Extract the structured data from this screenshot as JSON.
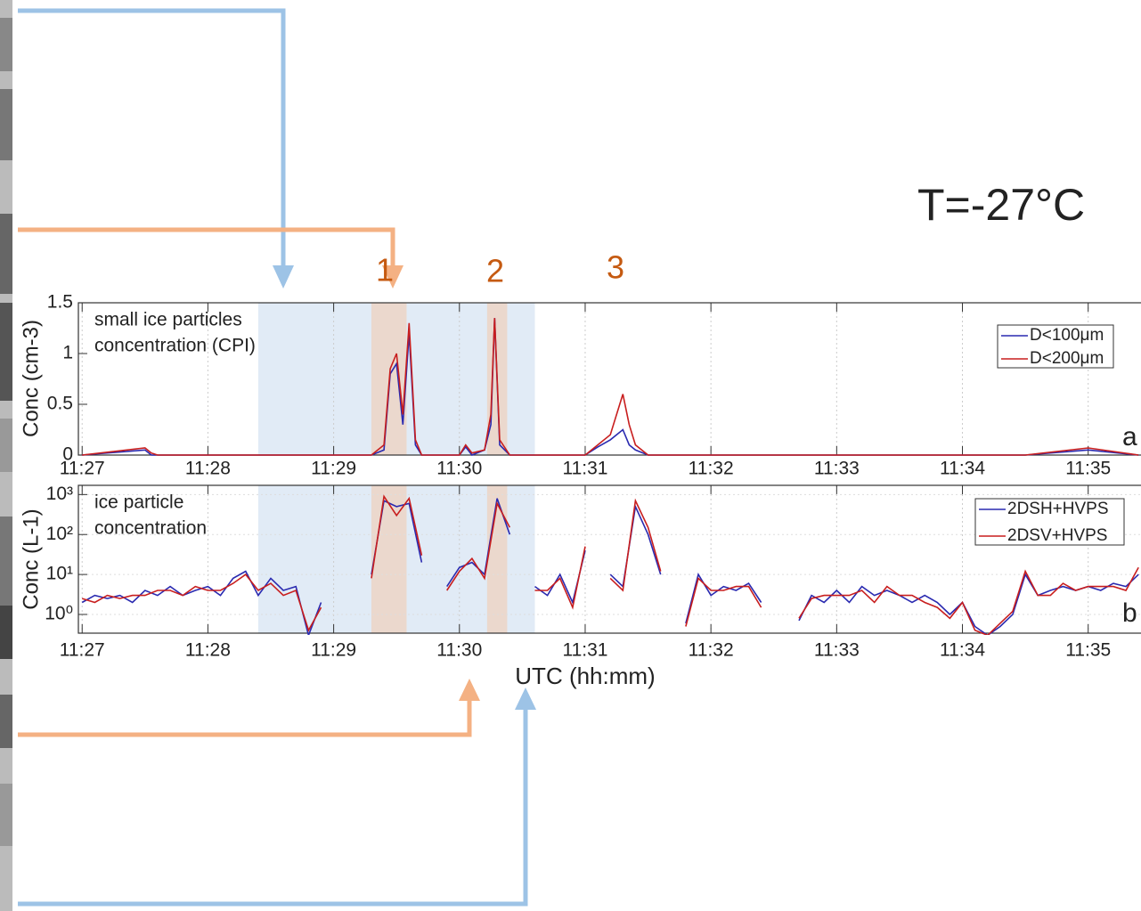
{
  "annotations": {
    "temperature": "T=-27°C",
    "events": [
      "1",
      "2",
      "3"
    ]
  },
  "chart_data": [
    {
      "type": "line",
      "panel_label": "a",
      "y_label": "Conc (cm-3)",
      "note_lines": [
        "small ice particles",
        "concentration (CPI)"
      ],
      "x": [
        687.0,
        687.5,
        687.55,
        687.6,
        688.0,
        688.5,
        689.0,
        689.3,
        689.4,
        689.45,
        689.5,
        689.55,
        689.6,
        689.65,
        689.7,
        690.0,
        690.05,
        690.1,
        690.2,
        690.25,
        690.28,
        690.32,
        690.4,
        691.0,
        691.1,
        691.2,
        691.3,
        691.35,
        691.4,
        691.5,
        691.6,
        692.0,
        692.5,
        693.0,
        693.5,
        694.0,
        694.5,
        695.0,
        695.4
      ],
      "series": [
        {
          "name": "D<100μm",
          "color": "#2a2ab0",
          "values": [
            0,
            0.05,
            0,
            0,
            0,
            0,
            0,
            0,
            0.05,
            0.8,
            0.9,
            0.3,
            1.2,
            0.1,
            0,
            0,
            0.08,
            0,
            0.05,
            0.3,
            1.35,
            0.1,
            0,
            0,
            0.08,
            0.15,
            0.25,
            0.1,
            0.05,
            0,
            0,
            0,
            0,
            0,
            0,
            0,
            0,
            0.05,
            0
          ]
        },
        {
          "name": "D<200μm",
          "color": "#c81e1e",
          "values": [
            0,
            0.07,
            0.02,
            0,
            0,
            0,
            0,
            0,
            0.1,
            0.85,
            1.0,
            0.4,
            1.3,
            0.15,
            0,
            0,
            0.1,
            0.02,
            0.05,
            0.4,
            1.35,
            0.15,
            0,
            0,
            0.1,
            0.2,
            0.6,
            0.3,
            0.1,
            0,
            0,
            0,
            0,
            0,
            0,
            0,
            0,
            0.07,
            0
          ]
        }
      ],
      "xlim": [
        686.97,
        695.42
      ],
      "ylim": [
        0,
        1.5
      ],
      "xticks": [
        {
          "value": 687,
          "label": "11:27"
        },
        {
          "value": 688,
          "label": "11:28"
        },
        {
          "value": 689,
          "label": "11:29"
        },
        {
          "value": 690,
          "label": "11:30"
        },
        {
          "value": 691,
          "label": "11:31"
        },
        {
          "value": 692,
          "label": "11:32"
        },
        {
          "value": 693,
          "label": "11:33"
        },
        {
          "value": 694,
          "label": "11:34"
        },
        {
          "value": 695,
          "label": "11:35"
        }
      ],
      "yticks": [
        0,
        0.5,
        1,
        1.5
      ],
      "grid": true,
      "legend": "upper right",
      "shaded_regions": [
        {
          "start": 688.4,
          "end": 690.6,
          "color": "#dce8f4"
        },
        {
          "start": 689.3,
          "end": 689.58,
          "color": "#ecd5c6"
        },
        {
          "start": 690.22,
          "end": 690.38,
          "color": "#ecd5c6"
        }
      ]
    },
    {
      "type": "line",
      "panel_label": "b",
      "y_label": "Conc  (L-1)",
      "x_label": "UTC (hh:mm)",
      "note_lines": [
        "ice particle",
        "concentration"
      ],
      "x": [
        687.0,
        687.1,
        687.2,
        687.3,
        687.4,
        687.5,
        687.6,
        687.7,
        687.8,
        687.9,
        688.0,
        688.1,
        688.2,
        688.3,
        688.4,
        688.5,
        688.6,
        688.7,
        688.8,
        688.9,
        689.0,
        689.1,
        689.2,
        689.3,
        689.4,
        689.5,
        689.6,
        689.7,
        689.8,
        689.9,
        690.0,
        690.1,
        690.2,
        690.3,
        690.4,
        690.5,
        690.6,
        690.7,
        690.8,
        690.9,
        691.0,
        691.1,
        691.2,
        691.3,
        691.4,
        691.5,
        691.6,
        691.7,
        691.8,
        691.9,
        692.0,
        692.1,
        692.2,
        692.3,
        692.4,
        692.5,
        692.6,
        692.7,
        692.8,
        692.9,
        693.0,
        693.1,
        693.2,
        693.3,
        693.4,
        693.5,
        693.6,
        693.7,
        693.8,
        693.9,
        694.0,
        694.1,
        694.2,
        694.3,
        694.4,
        694.5,
        694.6,
        694.7,
        694.8,
        694.9,
        695.0,
        695.1,
        695.2,
        695.3,
        695.4
      ],
      "series": [
        {
          "name": "2DSH+HVPS",
          "color": "#2a2ab0",
          "values": [
            2,
            3,
            2.5,
            3,
            2,
            4,
            3,
            5,
            3,
            4,
            5,
            3,
            8,
            12,
            3,
            8,
            4,
            5,
            0.3,
            2,
            null,
            3,
            null,
            10,
            700,
            500,
            600,
            20,
            null,
            5,
            15,
            20,
            10,
            800,
            100,
            null,
            5,
            3,
            10,
            2,
            40,
            null,
            10,
            5,
            500,
            100,
            10,
            null,
            0.6,
            10,
            3,
            5,
            4,
            6,
            2,
            null,
            null,
            0.7,
            3,
            2,
            4,
            2,
            5,
            3,
            4,
            3,
            2,
            3,
            2,
            1,
            2,
            0.5,
            0.3,
            0.5,
            1,
            10,
            3,
            4,
            5,
            4,
            5,
            4,
            6,
            5,
            10
          ]
        },
        {
          "name": "2DSV+HVPS",
          "color": "#c81e1e",
          "values": [
            2.5,
            2,
            3,
            2.5,
            3,
            3,
            4,
            4,
            3,
            5,
            4,
            4,
            6,
            10,
            4,
            6,
            3,
            4,
            0.4,
            1.5,
            null,
            2,
            null,
            8,
            900,
            300,
            800,
            30,
            null,
            4,
            12,
            25,
            8,
            600,
            150,
            null,
            4,
            4,
            8,
            1.5,
            50,
            null,
            8,
            4,
            700,
            150,
            12,
            null,
            0.5,
            8,
            4,
            4,
            5,
            5,
            1.5,
            null,
            null,
            0.8,
            2.5,
            3,
            3,
            3,
            4,
            2,
            5,
            3,
            3,
            2,
            1.5,
            0.8,
            2,
            0.4,
            0.3,
            0.6,
            1.2,
            12,
            3,
            3,
            6,
            4,
            5,
            5,
            5,
            4,
            15
          ]
        }
      ],
      "xlim": [
        686.97,
        695.42
      ],
      "ylim": [
        0.34,
        1700
      ],
      "log_y": true,
      "xticks": [
        {
          "value": 687,
          "label": "11:27"
        },
        {
          "value": 688,
          "label": "11:28"
        },
        {
          "value": 689,
          "label": "11:29"
        },
        {
          "value": 690,
          "label": "11:30"
        },
        {
          "value": 691,
          "label": "11:31"
        },
        {
          "value": 692,
          "label": "11:32"
        },
        {
          "value": 693,
          "label": "11:33"
        },
        {
          "value": 694,
          "label": "11:34"
        },
        {
          "value": 695,
          "label": "11:35"
        }
      ],
      "yticks": [
        {
          "value": 1,
          "label": "10⁰"
        },
        {
          "value": 10,
          "label": "10¹"
        },
        {
          "value": 100,
          "label": "10²"
        },
        {
          "value": 1000,
          "label": "10³"
        }
      ],
      "grid": true,
      "legend": "upper right",
      "shaded_regions": [
        {
          "start": 688.4,
          "end": 690.6,
          "color": "#dce8f4"
        },
        {
          "start": 689.3,
          "end": 689.58,
          "color": "#ecd5c6"
        },
        {
          "start": 690.22,
          "end": 690.38,
          "color": "#ecd5c6"
        }
      ]
    }
  ]
}
